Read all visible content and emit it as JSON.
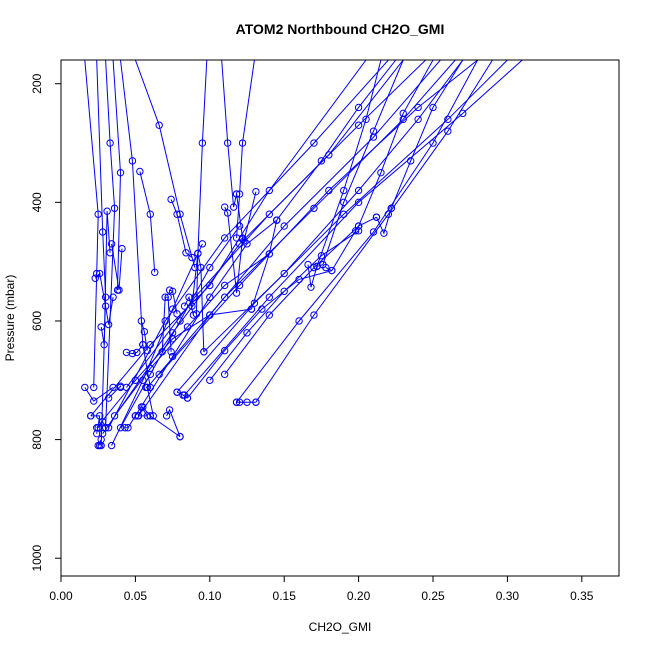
{
  "chart_data": {
    "type": "line",
    "title": "ATOM2 Northbound CH2O_GMI",
    "xlabel": "CH2O_GMI",
    "ylabel": "Pressure (mbar)",
    "xlim": [
      0.0,
      0.375
    ],
    "ylim": [
      1030,
      160
    ],
    "y_axis_inverted": true,
    "x_ticks": [
      "0.00",
      "0.05",
      "0.10",
      "0.15",
      "0.20",
      "0.25",
      "0.30",
      "0.35"
    ],
    "x_tick_values": [
      0.0,
      0.05,
      0.1,
      0.15,
      0.2,
      0.25,
      0.3,
      0.35
    ],
    "y_ticks": [
      "200",
      "400",
      "600",
      "800",
      "1000"
    ],
    "y_tick_values": [
      200,
      400,
      600,
      800,
      1000
    ],
    "grid": false,
    "legend": "none",
    "line_color": "#0000ff",
    "marker": "open-circle",
    "series": [
      {
        "x": [
          0.016,
          0.022,
          0.035
        ],
        "y": [
          712,
          735,
          712
        ]
      },
      {
        "x": [
          0.02,
          0.026,
          0.024
        ],
        "y": [
          760,
          760,
          790
        ]
      },
      {
        "x": [
          0.025,
          0.027,
          0.026
        ],
        "y": [
          810,
          800,
          810
        ]
      },
      {
        "x": [
          0.025,
          0.028,
          0.03
        ],
        "y": [
          780,
          770,
          780
        ]
      },
      {
        "x": [
          0.032,
          0.04,
          0.04
        ],
        "y": [
          730,
          710,
          712
        ]
      },
      {
        "x": [
          0.043,
          0.045,
          0.05
        ],
        "y": [
          780,
          780,
          760
        ]
      },
      {
        "x": [
          0.052,
          0.058,
          0.054
        ],
        "y": [
          760,
          760,
          745
        ]
      },
      {
        "x": [
          0.057,
          0.058,
          0.062
        ],
        "y": [
          712,
          712,
          760
        ]
      },
      {
        "x": [
          0.071,
          0.073,
          0.08
        ],
        "y": [
          760,
          750,
          795
        ]
      },
      {
        "x": [
          0.078,
          0.082,
          0.085
        ],
        "y": [
          720,
          725,
          730
        ]
      },
      {
        "x": [
          0.118,
          0.12,
          0.125,
          0.131
        ],
        "y": [
          737,
          737,
          737,
          737
        ]
      },
      {
        "x": [
          0.023,
          0.026,
          0.03,
          0.032,
          0.035
        ],
        "y": [
          528,
          520,
          575,
          606,
          560
        ]
      },
      {
        "x": [
          0.027,
          0.029,
          0.031,
          0.033
        ],
        "y": [
          610,
          640,
          415,
          485
        ]
      },
      {
        "x": [
          0.034,
          0.039,
          0.041
        ],
        "y": [
          470,
          548,
          478
        ]
      },
      {
        "x": [
          0.044,
          0.048,
          0.051,
          0.055
        ],
        "y": [
          653,
          655,
          653,
          640
        ]
      },
      {
        "x": [
          0.054,
          0.056,
          0.058
        ],
        "y": [
          600,
          618,
          650
        ]
      },
      {
        "x": [
          0.053,
          0.06,
          0.063
        ],
        "y": [
          348,
          420,
          518
        ]
      },
      {
        "x": [
          0.068,
          0.07,
          0.072,
          0.074
        ],
        "y": [
          652,
          560,
          560,
          652
        ]
      },
      {
        "x": [
          0.073,
          0.075,
          0.078
        ],
        "y": [
          548,
          550,
          588
        ]
      },
      {
        "x": [
          0.074,
          0.078,
          0.084,
          0.088
        ],
        "y": [
          395,
          420,
          485,
          493
        ]
      },
      {
        "x": [
          0.091,
          0.092,
          0.094,
          0.096
        ],
        "y": [
          588,
          486,
          510,
          652
        ]
      },
      {
        "x": [
          0.083,
          0.086,
          0.089
        ],
        "y": [
          575,
          560,
          590
        ]
      },
      {
        "x": [
          0.11,
          0.112,
          0.118,
          0.122
        ],
        "y": [
          408,
          418,
          553,
          462
        ]
      },
      {
        "x": [
          0.118,
          0.122,
          0.123,
          0.131
        ],
        "y": [
          386,
          460,
          465,
          382
        ]
      },
      {
        "x": [
          0.128,
          0.14,
          0.145
        ],
        "y": [
          580,
          487,
          430
        ]
      },
      {
        "x": [
          0.166,
          0.168,
          0.172,
          0.176
        ],
        "y": [
          505,
          543,
          508,
          505
        ]
      },
      {
        "x": [
          0.178,
          0.182,
          0.198,
          0.2
        ],
        "y": [
          510,
          515,
          448,
          440
        ]
      },
      {
        "x": [
          0.212,
          0.217,
          0.222
        ],
        "y": [
          425,
          452,
          410
        ]
      },
      {
        "x": [
          0.016,
          0.025,
          0.024,
          0.022
        ],
        "y": [
          160,
          420,
          520,
          712
        ]
      },
      {
        "x": [
          0.024,
          0.028,
          0.03,
          0.027
        ],
        "y": [
          160,
          450,
          560,
          810
        ]
      },
      {
        "x": [
          0.03,
          0.033,
          0.036,
          0.03
        ],
        "y": [
          160,
          300,
          410,
          780
        ]
      },
      {
        "x": [
          0.035,
          0.04,
          0.038
        ],
        "y": [
          160,
          350,
          548
        ]
      },
      {
        "x": [
          0.04,
          0.048,
          0.055,
          0.06
        ],
        "y": [
          160,
          330,
          640,
          712
        ]
      },
      {
        "x": [
          0.05,
          0.066,
          0.08,
          0.09
        ],
        "y": [
          160,
          270,
          420,
          510
        ]
      },
      {
        "x": [
          0.108,
          0.112,
          0.116,
          0.118
        ],
        "y": [
          160,
          300,
          408,
          386
        ]
      },
      {
        "x": [
          0.13,
          0.122,
          0.12,
          0.118
        ],
        "y": [
          160,
          300,
          386,
          460
        ]
      },
      {
        "x": [
          0.098,
          0.095,
          0.092,
          0.088
        ],
        "y": [
          160,
          300,
          486,
          575
        ]
      },
      {
        "x": [
          0.02,
          0.06,
          0.1,
          0.14,
          0.205
        ],
        "y": [
          760,
          640,
          540,
          380,
          160
        ]
      },
      {
        "x": [
          0.028,
          0.075,
          0.12,
          0.18,
          0.23
        ],
        "y": [
          790,
          620,
          470,
          320,
          160
        ]
      },
      {
        "x": [
          0.032,
          0.07,
          0.11,
          0.17,
          0.22
        ],
        "y": [
          780,
          600,
          460,
          300,
          160
        ]
      },
      {
        "x": [
          0.044,
          0.09,
          0.14,
          0.2,
          0.245
        ],
        "y": [
          712,
          560,
          420,
          270,
          160
        ]
      },
      {
        "x": [
          0.052,
          0.1,
          0.15,
          0.21,
          0.255
        ],
        "y": [
          760,
          590,
          440,
          290,
          160
        ]
      },
      {
        "x": [
          0.058,
          0.11,
          0.17,
          0.23,
          0.265
        ],
        "y": [
          712,
          560,
          410,
          260,
          160
        ]
      },
      {
        "x": [
          0.066,
          0.12,
          0.18,
          0.24,
          0.28
        ],
        "y": [
          690,
          540,
          380,
          240,
          160
        ]
      },
      {
        "x": [
          0.078,
          0.13,
          0.19,
          0.26,
          0.3
        ],
        "y": [
          720,
          570,
          420,
          260,
          160
        ]
      },
      {
        "x": [
          0.083,
          0.14,
          0.2,
          0.27,
          0.31
        ],
        "y": [
          725,
          560,
          400,
          250,
          160
        ]
      },
      {
        "x": [
          0.096,
          0.15,
          0.2,
          0.24,
          0.27
        ],
        "y": [
          652,
          520,
          380,
          260,
          160
        ]
      },
      {
        "x": [
          0.118,
          0.16,
          0.21,
          0.25,
          0.28
        ],
        "y": [
          737,
          600,
          450,
          300,
          160
        ]
      },
      {
        "x": [
          0.131,
          0.17,
          0.22,
          0.26,
          0.29
        ],
        "y": [
          737,
          590,
          420,
          280,
          160
        ]
      },
      {
        "x": [
          0.145,
          0.175,
          0.2,
          0.225
        ],
        "y": [
          430,
          330,
          240,
          160
        ]
      },
      {
        "x": [
          0.176,
          0.19,
          0.21,
          0.23
        ],
        "y": [
          505,
          400,
          280,
          160
        ]
      },
      {
        "x": [
          0.2,
          0.215,
          0.23,
          0.25
        ],
        "y": [
          440,
          350,
          250,
          160
        ]
      },
      {
        "x": [
          0.222,
          0.235,
          0.25,
          0.27
        ],
        "y": [
          410,
          330,
          240,
          160
        ]
      },
      {
        "x": [
          0.172,
          0.19,
          0.205,
          0.215
        ],
        "y": [
          508,
          380,
          260,
          160
        ]
      },
      {
        "x": [
          0.08,
          0.06,
          0.055,
          0.052
        ],
        "y": [
          795,
          760,
          745,
          760
        ]
      },
      {
        "x": [
          0.034,
          0.055,
          0.075,
          0.095
        ],
        "y": [
          810,
          700,
          580,
          470
        ]
      },
      {
        "x": [
          0.04,
          0.06,
          0.08,
          0.1,
          0.12
        ],
        "y": [
          780,
          690,
          600,
          510,
          440
        ]
      },
      {
        "x": [
          0.05,
          0.075,
          0.1,
          0.125,
          0.145
        ],
        "y": [
          760,
          660,
          560,
          470,
          430
        ]
      },
      {
        "x": [
          0.024,
          0.05,
          0.075,
          0.1,
          0.128
        ],
        "y": [
          780,
          700,
          630,
          590,
          580
        ]
      },
      {
        "x": [
          0.036,
          0.06,
          0.085,
          0.11,
          0.14
        ],
        "y": [
          760,
          680,
          610,
          540,
          487
        ]
      },
      {
        "x": [
          0.085,
          0.11,
          0.135,
          0.16,
          0.182
        ],
        "y": [
          730,
          650,
          580,
          530,
          515
        ]
      },
      {
        "x": [
          0.1,
          0.125,
          0.15,
          0.175,
          0.2
        ],
        "y": [
          700,
          620,
          550,
          490,
          448
        ]
      },
      {
        "x": [
          0.11,
          0.14,
          0.17,
          0.2,
          0.212
        ],
        "y": [
          690,
          590,
          510,
          440,
          425
        ]
      }
    ]
  }
}
